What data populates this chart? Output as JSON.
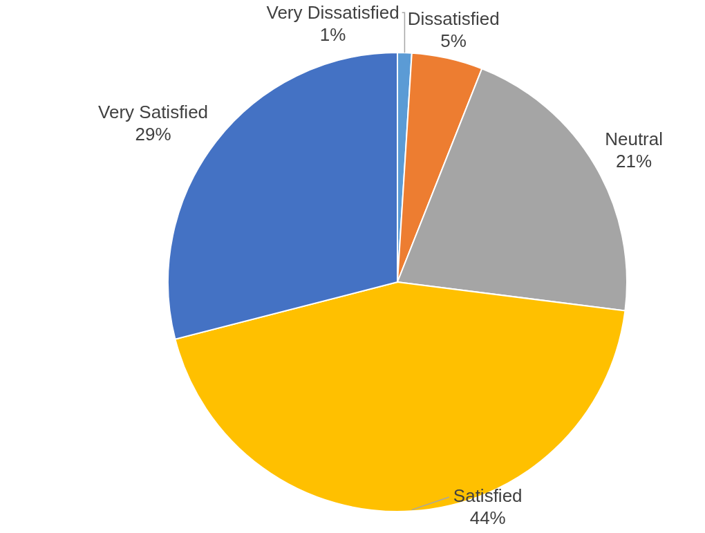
{
  "chart_data": {
    "type": "pie",
    "categories": [
      "Very Dissatisfied",
      "Dissatisfied",
      "Neutral",
      "Satisfied",
      "Very Satisfied"
    ],
    "values": [
      1,
      5,
      21,
      44,
      29
    ],
    "colors": [
      "#5b9bd5",
      "#ed7d31",
      "#a5a5a5",
      "#ffc000",
      "#4472c4"
    ],
    "value_labels": [
      "1%",
      "5%",
      "21%",
      "44%",
      "29%"
    ],
    "legend": false
  }
}
